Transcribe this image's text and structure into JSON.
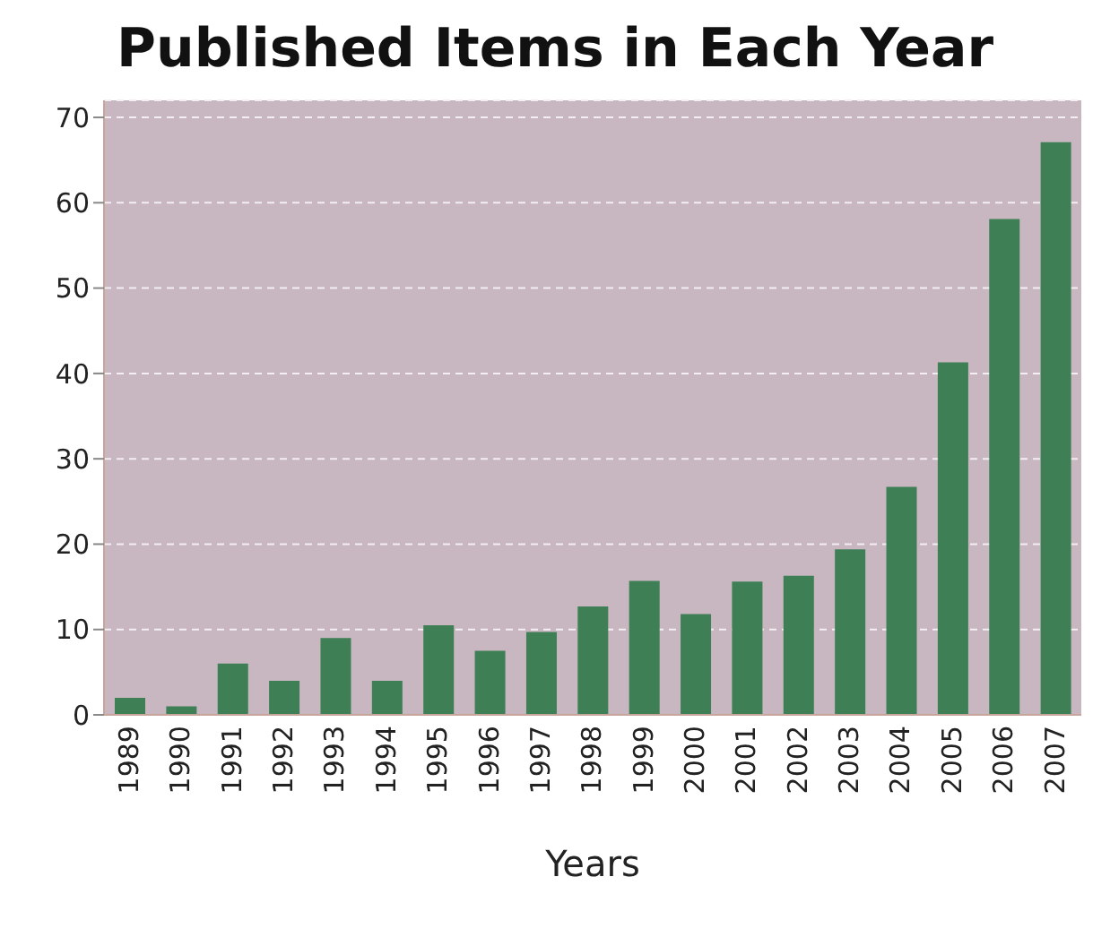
{
  "chart_data": {
    "type": "bar",
    "title": "Published Items in Each Year",
    "xlabel": "Years",
    "categories": [
      "1989",
      "1990",
      "1991",
      "1992",
      "1993",
      "1994",
      "1995",
      "1996",
      "1997",
      "1998",
      "1999",
      "2000",
      "2001",
      "2002",
      "2003",
      "2004",
      "2005",
      "2006",
      "2007"
    ],
    "values": [
      2,
      1,
      6,
      4,
      9,
      4,
      10.5,
      7.5,
      9.7,
      12.7,
      15.7,
      11.8,
      15.6,
      16.3,
      19.4,
      26.7,
      41.3,
      58.1,
      67.1
    ],
    "color": "#3e7f55",
    "ylim": [
      0,
      72
    ],
    "yticks": [
      0,
      10,
      20,
      30,
      40,
      50,
      60,
      70
    ],
    "grid": "y"
  }
}
